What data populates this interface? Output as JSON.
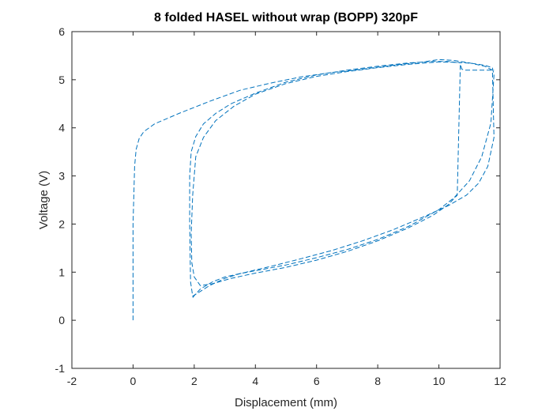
{
  "chart_data": {
    "type": "line",
    "title": "8 folded HASEL without wrap (BOPP) 320pF",
    "xlabel": "Displacement (mm)",
    "ylabel": "Voltage (V)",
    "xlim": [
      -2,
      12
    ],
    "ylim": [
      -1,
      6
    ],
    "xticks": [
      "-2",
      "0",
      "2",
      "4",
      "6",
      "8",
      "10",
      "12"
    ],
    "yticks": [
      "-1",
      "0",
      "1",
      "2",
      "3",
      "4",
      "5",
      "6"
    ],
    "grid": false,
    "line_color": "#0072BD",
    "line_style": "dashed",
    "series": [
      {
        "x": [
          0.0,
          0.0,
          0.05,
          0.1,
          0.2,
          0.35,
          0.7,
          1.5,
          2.5,
          3.5,
          4.5,
          5.5,
          6.5,
          7.5,
          8.5,
          9.5,
          10.0,
          10.5,
          11.0,
          11.5,
          11.75,
          11.8,
          11.6,
          11.3,
          10.9,
          10.3,
          9.5,
          8.5,
          7.5,
          6.5,
          5.5,
          4.5,
          3.5,
          3.0,
          2.5,
          2.1,
          1.95,
          1.88,
          1.85,
          1.85,
          1.9,
          2.05,
          2.3,
          2.7,
          3.2,
          4.0,
          5.0,
          6.0,
          7.0,
          8.0,
          9.0,
          9.8,
          10.3,
          10.7
        ],
        "y": [
          0.0,
          2.0,
          3.2,
          3.55,
          3.78,
          3.92,
          4.08,
          4.3,
          4.55,
          4.78,
          4.93,
          5.06,
          5.15,
          5.22,
          5.3,
          5.37,
          5.42,
          5.4,
          5.35,
          5.28,
          5.2,
          3.8,
          3.2,
          2.85,
          2.6,
          2.38,
          2.15,
          1.88,
          1.65,
          1.45,
          1.28,
          1.12,
          0.97,
          0.87,
          0.72,
          0.56,
          0.5,
          0.8,
          2.0,
          3.0,
          3.5,
          3.82,
          4.08,
          4.3,
          4.5,
          4.72,
          4.95,
          5.1,
          5.2,
          5.28,
          5.35,
          5.38,
          5.38,
          5.35
        ]
      },
      {
        "x": [
          1.95,
          2.05,
          2.2,
          2.6,
          3.0,
          3.5,
          4.0,
          5.0,
          6.0,
          7.0,
          8.0,
          9.0,
          10.0,
          10.5,
          11.0,
          11.4,
          11.7,
          11.8,
          11.75,
          11.5,
          11.1,
          10.6,
          10.0,
          9.0,
          8.0,
          7.0,
          6.0,
          5.0,
          4.0,
          3.3,
          2.7,
          2.3,
          2.05,
          1.95,
          1.9,
          1.92,
          2.0,
          2.2,
          2.6,
          3.2,
          4.0,
          5.0,
          6.0,
          7.0,
          8.0,
          9.0,
          9.8,
          10.3,
          10.6,
          10.7,
          10.75,
          10.85,
          11.2,
          11.6,
          11.8
        ],
        "y": [
          0.47,
          0.55,
          0.65,
          0.8,
          0.9,
          0.97,
          1.03,
          1.15,
          1.3,
          1.47,
          1.68,
          1.95,
          2.3,
          2.55,
          2.9,
          3.4,
          4.1,
          5.1,
          5.25,
          5.3,
          5.34,
          5.36,
          5.37,
          5.32,
          5.25,
          5.17,
          5.07,
          4.92,
          4.7,
          4.45,
          4.15,
          3.8,
          3.4,
          2.6,
          1.8,
          1.2,
          0.9,
          0.72,
          0.76,
          0.87,
          0.98,
          1.1,
          1.25,
          1.43,
          1.65,
          1.92,
          2.18,
          2.4,
          2.6,
          5.32,
          5.22,
          5.2,
          5.2,
          5.2,
          5.2
        ]
      }
    ]
  }
}
